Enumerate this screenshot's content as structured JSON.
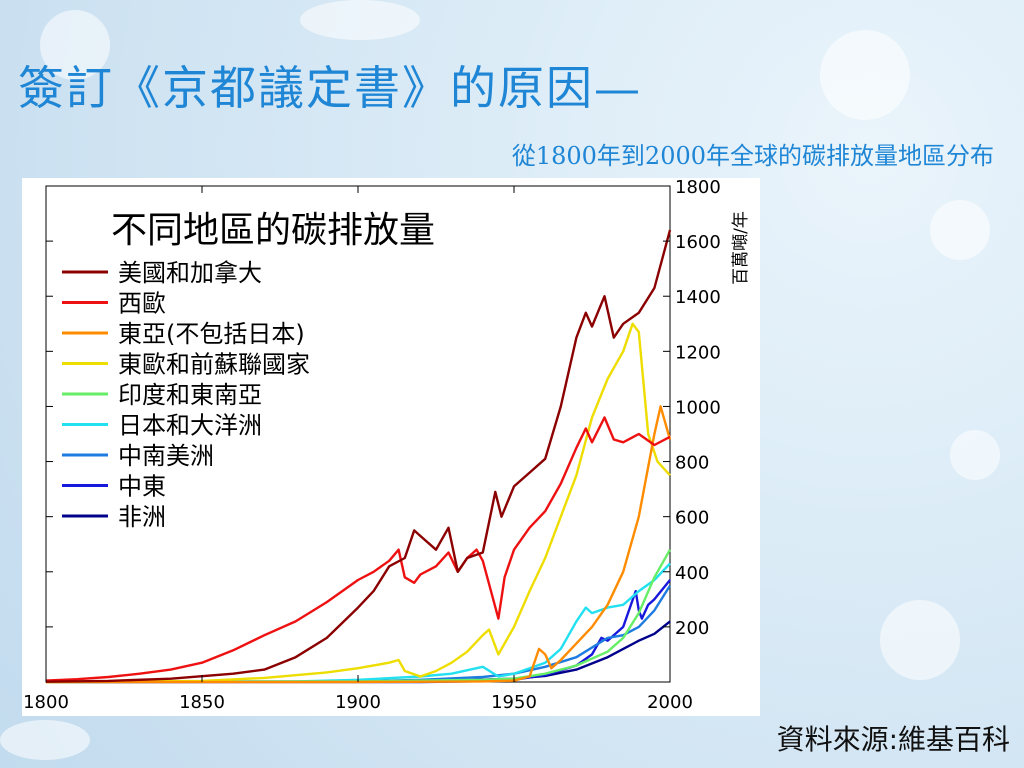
{
  "slide": {
    "title": "簽訂《京都議定書》的原因—",
    "subtitle": "從1800年到2000年全球的碳排放量地區分布",
    "source": "資料來源:維基百科"
  },
  "chart_data": {
    "type": "line",
    "title": "不同地區的碳排放量",
    "ylabel": "百萬噸/年",
    "xlabel": "",
    "xlim": [
      1800,
      2000
    ],
    "ylim": [
      0,
      1800
    ],
    "x_ticks": [
      1800,
      1850,
      1900,
      1950,
      2000
    ],
    "y_ticks": [
      200,
      400,
      600,
      800,
      1000,
      1200,
      1400,
      1600,
      1800
    ],
    "y_axis_side": "right",
    "legend_position": "top-left",
    "grid": false,
    "series": [
      {
        "name": "美國和加拿大",
        "color": "#8b0000",
        "points": [
          [
            1800,
            1
          ],
          [
            1820,
            4
          ],
          [
            1840,
            12
          ],
          [
            1860,
            30
          ],
          [
            1870,
            45
          ],
          [
            1880,
            90
          ],
          [
            1890,
            160
          ],
          [
            1900,
            270
          ],
          [
            1905,
            330
          ],
          [
            1910,
            420
          ],
          [
            1915,
            450
          ],
          [
            1918,
            550
          ],
          [
            1920,
            530
          ],
          [
            1925,
            480
          ],
          [
            1929,
            560
          ],
          [
            1932,
            400
          ],
          [
            1935,
            450
          ],
          [
            1940,
            470
          ],
          [
            1944,
            690
          ],
          [
            1946,
            600
          ],
          [
            1950,
            710
          ],
          [
            1955,
            760
          ],
          [
            1960,
            810
          ],
          [
            1965,
            1000
          ],
          [
            1970,
            1250
          ],
          [
            1973,
            1340
          ],
          [
            1975,
            1290
          ],
          [
            1979,
            1400
          ],
          [
            1982,
            1250
          ],
          [
            1985,
            1300
          ],
          [
            1990,
            1340
          ],
          [
            1995,
            1430
          ],
          [
            2000,
            1640
          ]
        ]
      },
      {
        "name": "西歐",
        "color": "#ee1111",
        "points": [
          [
            1800,
            5
          ],
          [
            1810,
            10
          ],
          [
            1820,
            18
          ],
          [
            1830,
            30
          ],
          [
            1840,
            45
          ],
          [
            1850,
            70
          ],
          [
            1860,
            115
          ],
          [
            1870,
            170
          ],
          [
            1880,
            220
          ],
          [
            1890,
            290
          ],
          [
            1900,
            370
          ],
          [
            1905,
            400
          ],
          [
            1910,
            440
          ],
          [
            1913,
            480
          ],
          [
            1915,
            380
          ],
          [
            1918,
            360
          ],
          [
            1920,
            390
          ],
          [
            1925,
            420
          ],
          [
            1929,
            470
          ],
          [
            1932,
            400
          ],
          [
            1935,
            450
          ],
          [
            1938,
            480
          ],
          [
            1940,
            440
          ],
          [
            1945,
            230
          ],
          [
            1947,
            380
          ],
          [
            1950,
            480
          ],
          [
            1955,
            560
          ],
          [
            1960,
            620
          ],
          [
            1965,
            720
          ],
          [
            1970,
            850
          ],
          [
            1973,
            920
          ],
          [
            1975,
            870
          ],
          [
            1979,
            960
          ],
          [
            1982,
            880
          ],
          [
            1985,
            870
          ],
          [
            1990,
            900
          ],
          [
            1995,
            860
          ],
          [
            2000,
            890
          ]
        ]
      },
      {
        "name": "東亞(不包括日本)",
        "color": "#ff8c00",
        "points": [
          [
            1800,
            0
          ],
          [
            1900,
            0
          ],
          [
            1940,
            2
          ],
          [
            1950,
            5
          ],
          [
            1955,
            20
          ],
          [
            1958,
            120
          ],
          [
            1960,
            100
          ],
          [
            1962,
            50
          ],
          [
            1965,
            80
          ],
          [
            1970,
            140
          ],
          [
            1975,
            200
          ],
          [
            1980,
            280
          ],
          [
            1985,
            400
          ],
          [
            1990,
            600
          ],
          [
            1995,
            900
          ],
          [
            1997,
            1000
          ],
          [
            2000,
            880
          ]
        ]
      },
      {
        "name": "東歐和前蘇聯國家",
        "color": "#eedd00",
        "points": [
          [
            1800,
            0
          ],
          [
            1850,
            4
          ],
          [
            1870,
            15
          ],
          [
            1890,
            35
          ],
          [
            1900,
            50
          ],
          [
            1910,
            70
          ],
          [
            1913,
            80
          ],
          [
            1915,
            40
          ],
          [
            1920,
            20
          ],
          [
            1925,
            40
          ],
          [
            1930,
            70
          ],
          [
            1935,
            110
          ],
          [
            1940,
            170
          ],
          [
            1942,
            190
          ],
          [
            1945,
            100
          ],
          [
            1950,
            200
          ],
          [
            1955,
            330
          ],
          [
            1960,
            450
          ],
          [
            1965,
            600
          ],
          [
            1970,
            750
          ],
          [
            1975,
            960
          ],
          [
            1980,
            1100
          ],
          [
            1985,
            1200
          ],
          [
            1988,
            1300
          ],
          [
            1990,
            1270
          ],
          [
            1993,
            900
          ],
          [
            1996,
            800
          ],
          [
            2000,
            750
          ]
        ]
      },
      {
        "name": "印度和東南亞",
        "color": "#66ee66",
        "points": [
          [
            1800,
            0
          ],
          [
            1900,
            2
          ],
          [
            1920,
            5
          ],
          [
            1940,
            8
          ],
          [
            1950,
            12
          ],
          [
            1960,
            30
          ],
          [
            1970,
            60
          ],
          [
            1980,
            110
          ],
          [
            1985,
            160
          ],
          [
            1990,
            250
          ],
          [
            1995,
            380
          ],
          [
            2000,
            480
          ]
        ]
      },
      {
        "name": "日本和大洋洲",
        "color": "#22e0f0",
        "points": [
          [
            1800,
            0
          ],
          [
            1880,
            2
          ],
          [
            1900,
            8
          ],
          [
            1920,
            20
          ],
          [
            1930,
            30
          ],
          [
            1940,
            55
          ],
          [
            1945,
            20
          ],
          [
            1950,
            30
          ],
          [
            1960,
            70
          ],
          [
            1965,
            120
          ],
          [
            1970,
            220
          ],
          [
            1973,
            270
          ],
          [
            1975,
            250
          ],
          [
            1980,
            270
          ],
          [
            1985,
            280
          ],
          [
            1990,
            330
          ],
          [
            1995,
            370
          ],
          [
            2000,
            430
          ]
        ]
      },
      {
        "name": "中南美洲",
        "color": "#1e7be0",
        "points": [
          [
            1800,
            0
          ],
          [
            1900,
            2
          ],
          [
            1920,
            8
          ],
          [
            1940,
            18
          ],
          [
            1950,
            30
          ],
          [
            1960,
            55
          ],
          [
            1970,
            90
          ],
          [
            1980,
            160
          ],
          [
            1985,
            170
          ],
          [
            1990,
            200
          ],
          [
            1995,
            260
          ],
          [
            2000,
            350
          ]
        ]
      },
      {
        "name": "中東",
        "color": "#1818dd",
        "points": [
          [
            1800,
            0
          ],
          [
            1920,
            0
          ],
          [
            1940,
            3
          ],
          [
            1950,
            8
          ],
          [
            1960,
            25
          ],
          [
            1970,
            60
          ],
          [
            1975,
            100
          ],
          [
            1978,
            160
          ],
          [
            1980,
            150
          ],
          [
            1983,
            180
          ],
          [
            1985,
            200
          ],
          [
            1989,
            330
          ],
          [
            1990,
            260
          ],
          [
            1991,
            230
          ],
          [
            1993,
            280
          ],
          [
            1995,
            300
          ],
          [
            2000,
            370
          ]
        ]
      },
      {
        "name": "非洲",
        "color": "#00008b",
        "points": [
          [
            1800,
            0
          ],
          [
            1900,
            1
          ],
          [
            1930,
            5
          ],
          [
            1950,
            12
          ],
          [
            1960,
            22
          ],
          [
            1970,
            45
          ],
          [
            1980,
            90
          ],
          [
            1985,
            120
          ],
          [
            1990,
            150
          ],
          [
            1995,
            175
          ],
          [
            2000,
            220
          ]
        ]
      }
    ]
  }
}
